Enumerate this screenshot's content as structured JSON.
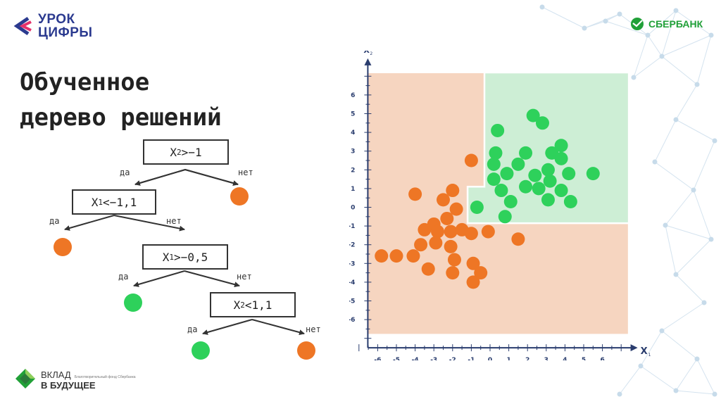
{
  "branding": {
    "urok_line1": "УРОК",
    "urok_line2": "ЦИФРЫ",
    "sber": "СБЕРБАНК",
    "vklad_line1": "ВКЛАД",
    "vklad_small": "Благотворительный фонд Сбербанка",
    "vklad_line2": "В БУДУЩЕЕ"
  },
  "title": {
    "line1": "Обученное",
    "line2": "дерево решений"
  },
  "tree": {
    "node1": {
      "var": "X",
      "sub": "2",
      "cond": ">−1"
    },
    "node2": {
      "var": "X",
      "sub": "1",
      "cond": "<−1,1"
    },
    "node3": {
      "var": "X",
      "sub": "1",
      "cond": ">−0,5"
    },
    "node4": {
      "var": "X",
      "sub": "2",
      "cond": "<1,1"
    },
    "yes": "да",
    "no": "нет",
    "leaves": [
      "orange",
      "orange",
      "green",
      "green",
      "orange"
    ]
  },
  "colors": {
    "orange": "#ee7625",
    "green": "#2ed15b",
    "region_orange": "#f6d5c0",
    "region_green": "#cdeed5"
  },
  "chart_data": {
    "type": "scatter",
    "xlabel": "X",
    "xlabel_sub": "1",
    "ylabel": "X",
    "ylabel_sub": "2",
    "xlim": [
      -6,
      6
    ],
    "ylim": [
      -6,
      6
    ],
    "xticks": [
      -6,
      -5,
      -4,
      -3,
      -2,
      -1,
      0,
      1,
      2,
      3,
      4,
      5,
      6
    ],
    "yticks": [
      6,
      5,
      4,
      3,
      2,
      1,
      0,
      -1,
      -2,
      -3,
      -4,
      -5,
      -6
    ],
    "regions": [
      {
        "class": "orange",
        "bounds": {
          "x": [
            -6.6,
            7.4
          ],
          "y": [
            -6.8,
            7.2
          ]
        }
      },
      {
        "class": "green",
        "bounds": {
          "x": [
            -0.3,
            7.4
          ],
          "y": [
            -0.85,
            7.2
          ]
        }
      },
      {
        "class": "green",
        "bounds": {
          "x": [
            -1.2,
            7.4
          ],
          "y": [
            -0.85,
            1.1
          ]
        }
      }
    ],
    "series": [
      {
        "class": "orange",
        "points": [
          [
            -1,
            2.5
          ],
          [
            -4,
            0.7
          ],
          [
            -2,
            0.9
          ],
          [
            -2.5,
            0.4
          ],
          [
            -1.8,
            -0.1
          ],
          [
            -2.3,
            -0.6
          ],
          [
            -3,
            -0.9
          ],
          [
            -3.5,
            -1.2
          ],
          [
            -2.8,
            -1.3
          ],
          [
            -2.1,
            -1.3
          ],
          [
            -1.5,
            -1.2
          ],
          [
            -1,
            -1.4
          ],
          [
            -0.1,
            -1.3
          ],
          [
            1.5,
            -1.7
          ],
          [
            -2.1,
            -2.1
          ],
          [
            -2.9,
            -1.9
          ],
          [
            -3.7,
            -2
          ],
          [
            -4.1,
            -2.6
          ],
          [
            -5,
            -2.6
          ],
          [
            -5.8,
            -2.6
          ],
          [
            -1.9,
            -2.8
          ],
          [
            -3.3,
            -3.3
          ],
          [
            -2,
            -3.5
          ],
          [
            -0.9,
            -3
          ],
          [
            -0.5,
            -3.5
          ],
          [
            -0.9,
            -4
          ]
        ]
      },
      {
        "class": "green",
        "points": [
          [
            0.4,
            4.1
          ],
          [
            2.3,
            4.9
          ],
          [
            2.8,
            4.5
          ],
          [
            0.3,
            2.9
          ],
          [
            1.9,
            2.9
          ],
          [
            3.3,
            2.9
          ],
          [
            3.8,
            3.3
          ],
          [
            3.8,
            2.6
          ],
          [
            0.2,
            2.3
          ],
          [
            1.5,
            2.3
          ],
          [
            3.1,
            2
          ],
          [
            0.9,
            1.8
          ],
          [
            2.4,
            1.7
          ],
          [
            4.2,
            1.8
          ],
          [
            5.5,
            1.8
          ],
          [
            0.2,
            1.5
          ],
          [
            1.9,
            1.1
          ],
          [
            2.6,
            1
          ],
          [
            3.2,
            1.4
          ],
          [
            3.8,
            0.9
          ],
          [
            0.6,
            0.9
          ],
          [
            1.1,
            0.3
          ],
          [
            3.1,
            0.4
          ],
          [
            4.3,
            0.3
          ],
          [
            -0.7,
            0
          ],
          [
            0.8,
            -0.5
          ]
        ]
      }
    ]
  }
}
